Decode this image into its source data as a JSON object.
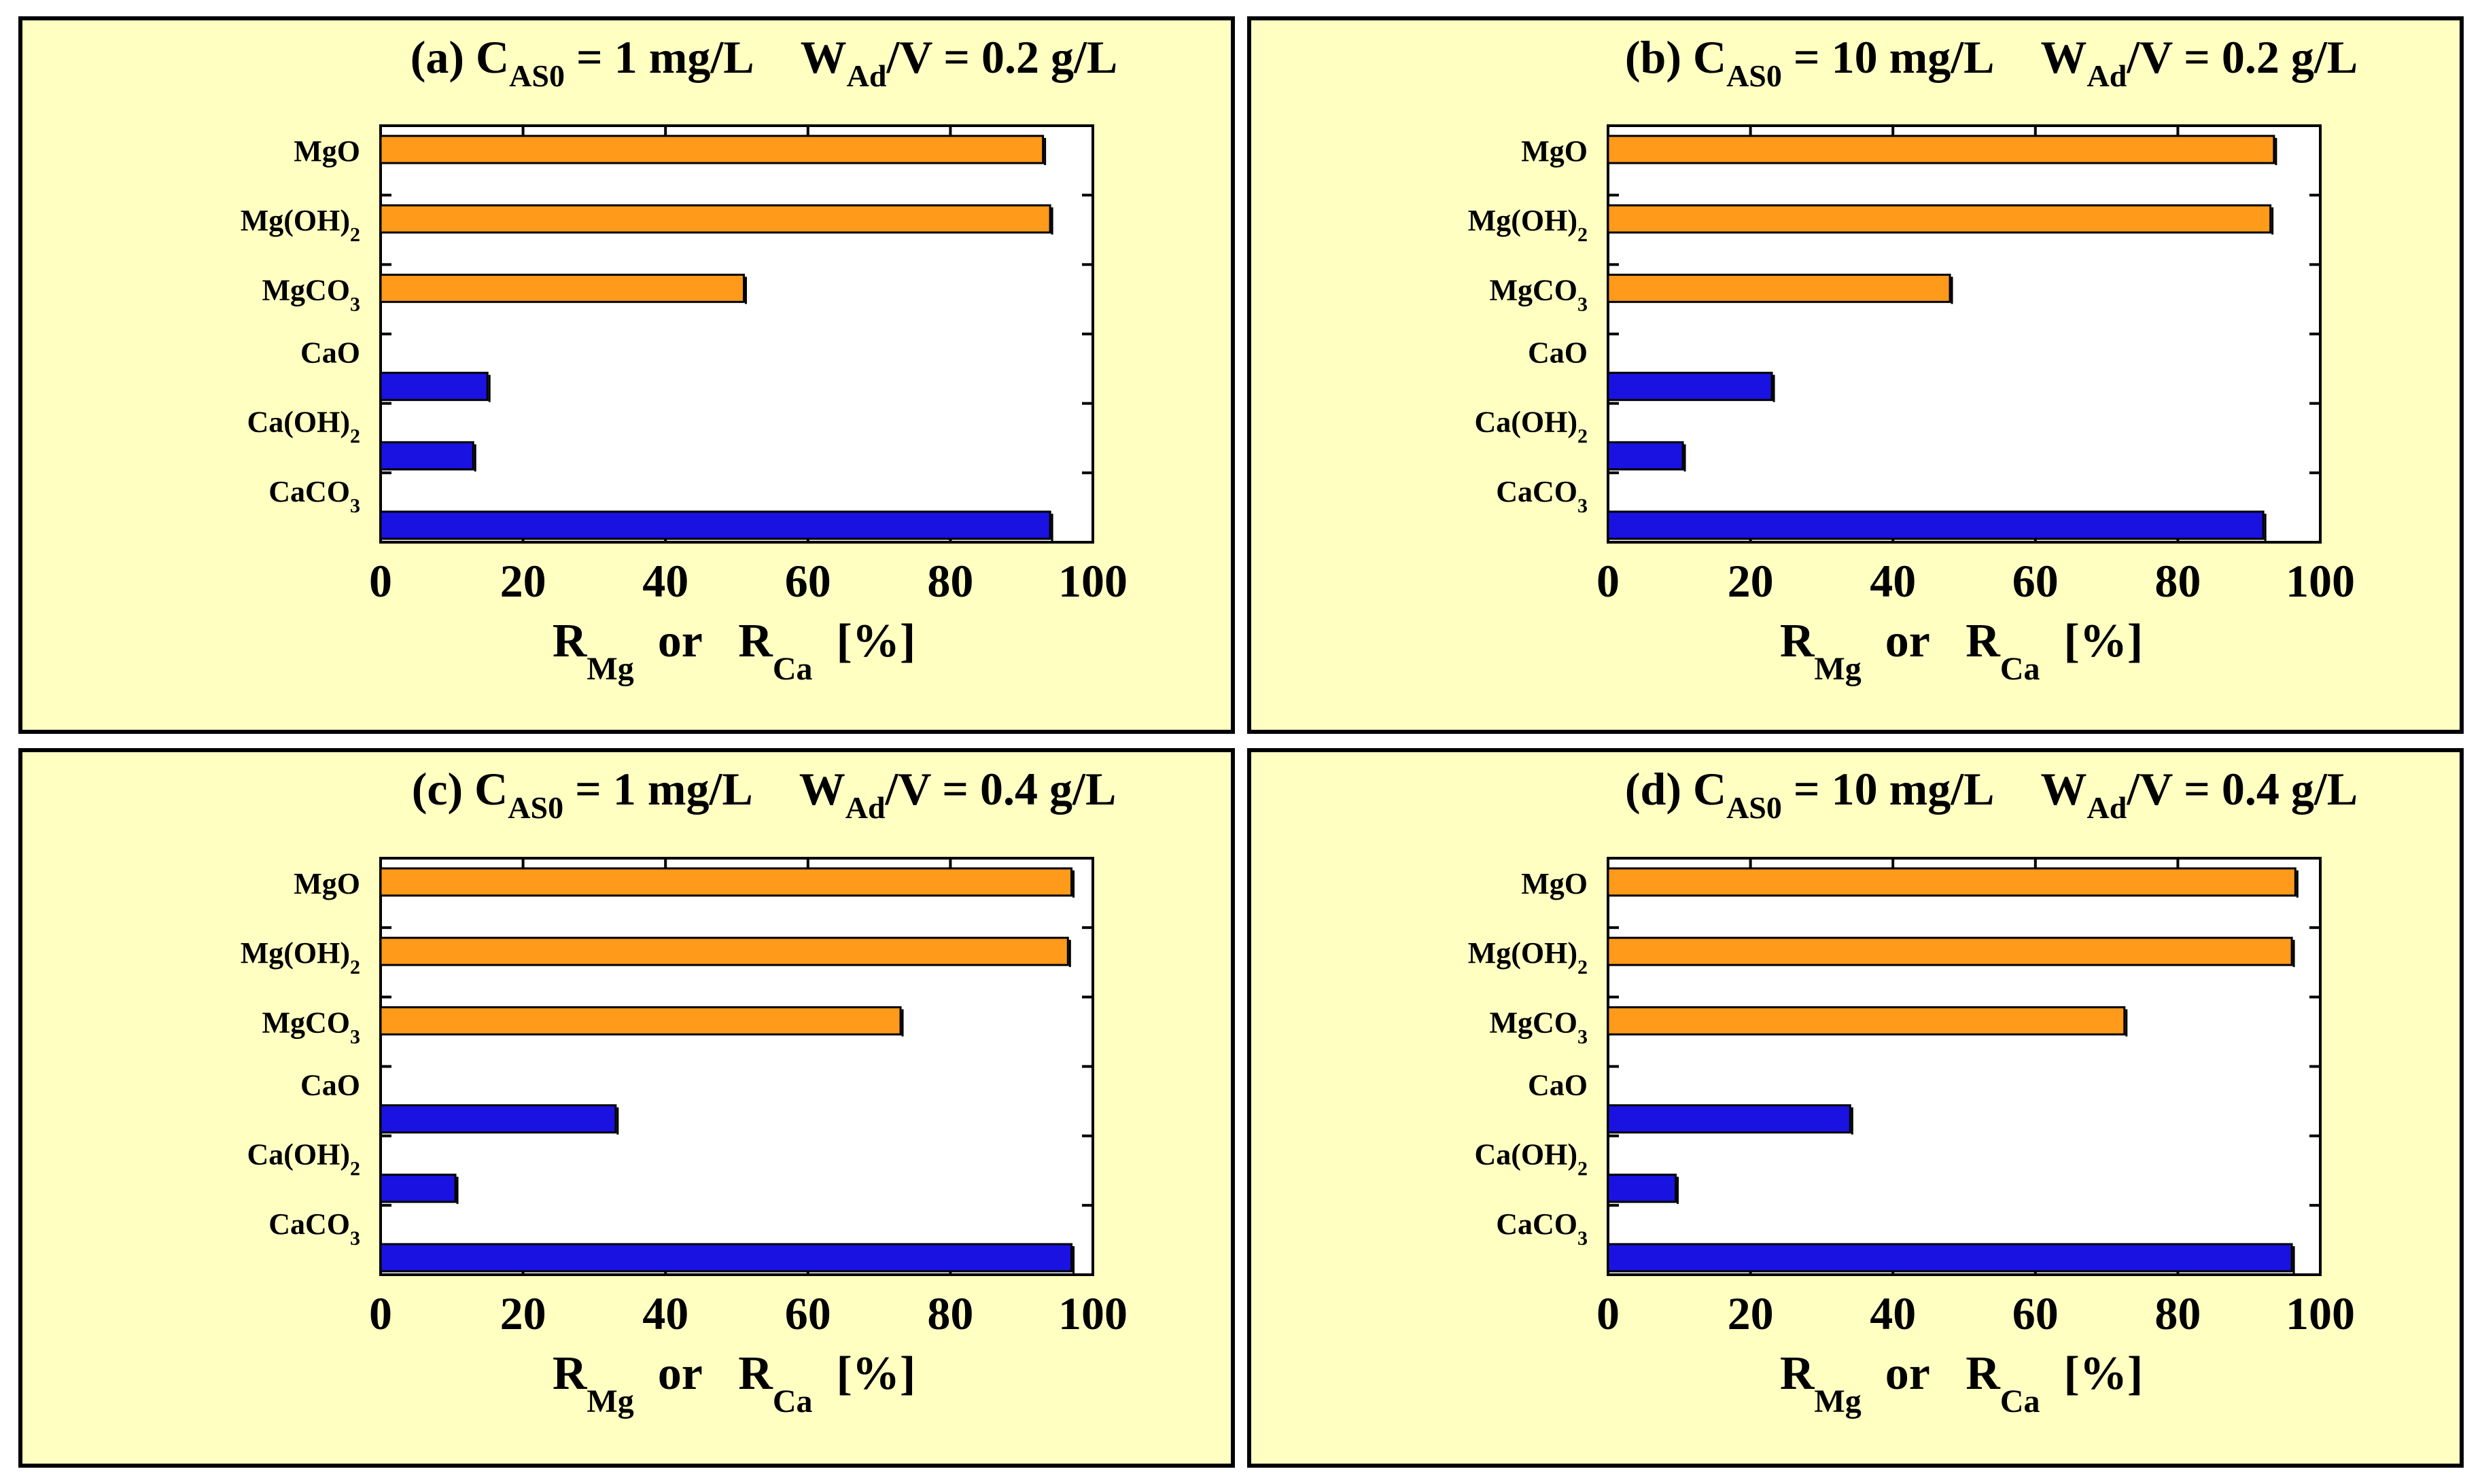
{
  "colors": {
    "panel_bg": "#ffffc2",
    "mg": "#ff9a1a",
    "ca": "#1a12e0",
    "frame": "#000000"
  },
  "categories": [
    {
      "text": "MgO",
      "sub": "",
      "group": "Mg"
    },
    {
      "text": "Mg(OH)",
      "sub": "2",
      "group": "Mg"
    },
    {
      "text": "MgCO",
      "sub": "3",
      "group": "Mg"
    },
    {
      "text": "CaO",
      "sub": "",
      "group": "Ca"
    },
    {
      "text": "Ca(OH)",
      "sub": "2",
      "group": "Ca"
    },
    {
      "text": "CaCO",
      "sub": "3",
      "group": "Ca"
    }
  ],
  "x_axis": {
    "ticks": [
      "0",
      "20",
      "40",
      "60",
      "80",
      "100"
    ],
    "xlim": [
      0,
      100
    ],
    "label": {
      "r1": "R",
      "s1": "Mg",
      "mid": "or",
      "r2": "R",
      "s2": "Ca",
      "unit": "[%]"
    }
  },
  "chart_data": [
    {
      "type": "bar",
      "orientation": "horizontal",
      "title": {
        "prefix": "(a) C",
        "sub1": "AS0",
        "mid": " = 1 mg/L",
        "w": "W",
        "sub2": "Ad",
        "tail": "/V =  0.2 g/L"
      },
      "categories": [
        "MgO",
        "Mg(OH)2",
        "MgCO3",
        "CaO",
        "Ca(OH)2",
        "CaCO3"
      ],
      "values": [
        93,
        94,
        51,
        15,
        13,
        94
      ],
      "xlabel": "RMg or RCa [%]",
      "xlim": [
        0,
        100
      ]
    },
    {
      "type": "bar",
      "orientation": "horizontal",
      "title": {
        "prefix": "(b) C",
        "sub1": "AS0",
        "mid": " = 10 mg/L",
        "w": "W",
        "sub2": "Ad",
        "tail": "/V =  0.2 g/L"
      },
      "categories": [
        "MgO",
        "Mg(OH)2",
        "MgCO3",
        "CaO",
        "Ca(OH)2",
        "CaCO3"
      ],
      "values": [
        93.5,
        93,
        48,
        23,
        10.5,
        92
      ],
      "xlabel": "RMg or RCa [%]",
      "xlim": [
        0,
        100
      ]
    },
    {
      "type": "bar",
      "orientation": "horizontal",
      "title": {
        "prefix": "(c) C",
        "sub1": "AS0",
        "mid": " = 1 mg/L",
        "w": "W",
        "sub2": "Ad",
        "tail": "/V =  0.4 g/L"
      },
      "categories": [
        "MgO",
        "Mg(OH)2",
        "MgCO3",
        "CaO",
        "Ca(OH)2",
        "CaCO3"
      ],
      "values": [
        97,
        96.5,
        73,
        33,
        10.5,
        97
      ],
      "xlabel": "RMg or RCa [%]",
      "xlim": [
        0,
        100
      ]
    },
    {
      "type": "bar",
      "orientation": "horizontal",
      "title": {
        "prefix": "(d) C",
        "sub1": "AS0",
        "mid": " = 10 mg/L",
        "w": "W",
        "sub2": "Ad",
        "tail": "/V =  0.4 g/L"
      },
      "categories": [
        "MgO",
        "Mg(OH)2",
        "MgCO3",
        "CaO",
        "Ca(OH)2",
        "CaCO3"
      ],
      "values": [
        96.5,
        96,
        72.5,
        34,
        9.5,
        96
      ],
      "xlabel": "RMg or RCa [%]",
      "xlim": [
        0,
        100
      ]
    }
  ]
}
